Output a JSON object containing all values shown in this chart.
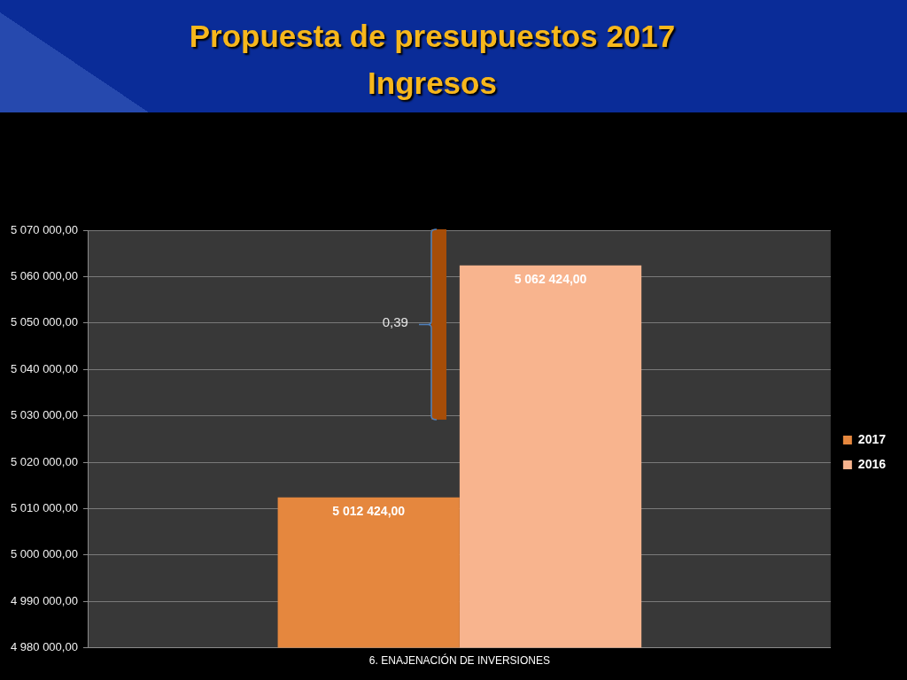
{
  "chart_data": {
    "type": "bar",
    "title": "Propuesta de presupuestos 2017",
    "subtitle": "Ingresos",
    "categories": [
      "6. ENAJENACIÓN DE INVERSIONES"
    ],
    "series": [
      {
        "name": "2017",
        "color": "#e5873e",
        "values": [
          5012424
        ],
        "value_labels": [
          "5 012 424,00"
        ]
      },
      {
        "name": "2016",
        "color": "#f8b48e",
        "values": [
          5062424
        ],
        "value_labels": [
          "5 062 424,00"
        ]
      }
    ],
    "ylim": [
      4980000,
      5070000
    ],
    "yticks": [
      {
        "value": 4980000,
        "label": "4 980 000,00"
      },
      {
        "value": 4990000,
        "label": "4 990 000,00"
      },
      {
        "value": 5000000,
        "label": "5 000 000,00"
      },
      {
        "value": 5010000,
        "label": "5 010 000,00"
      },
      {
        "value": 5020000,
        "label": "5 020 000,00"
      },
      {
        "value": 5030000,
        "label": "5 030 000,00"
      },
      {
        "value": 5040000,
        "label": "5 040 000,00"
      },
      {
        "value": 5050000,
        "label": "5 050 000,00"
      },
      {
        "value": 5060000,
        "label": "5 060 000,00"
      },
      {
        "value": 5070000,
        "label": "5 070 000,00"
      }
    ],
    "grid": "y",
    "legend": "right",
    "annotations": [
      "0,39"
    ]
  }
}
